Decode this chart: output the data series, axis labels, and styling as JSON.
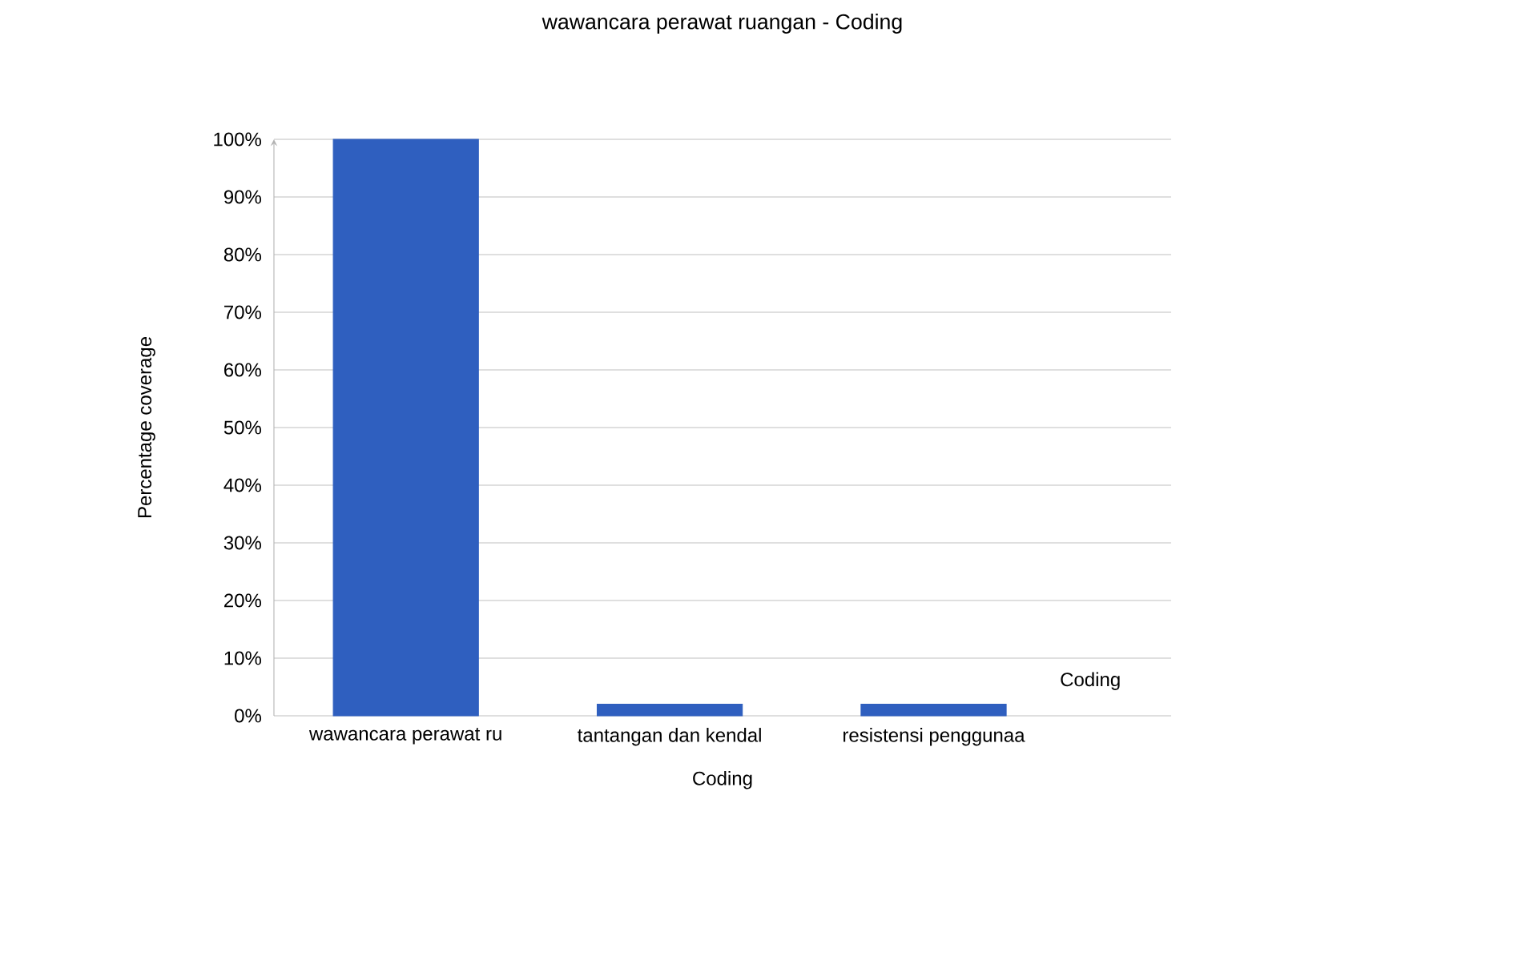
{
  "chart_data": {
    "type": "bar",
    "title": "wawancara perawat ruangan - Coding",
    "categories": [
      "wawancara perawat ru",
      "tantangan dan kendal",
      "resistensi penggunaa"
    ],
    "series": [
      {
        "name": "Coding",
        "color": "#2f5fbf",
        "values": [
          100,
          2,
          2
        ]
      }
    ],
    "xlabel": "Coding",
    "ylabel": "Percentage coverage",
    "ylim": [
      0,
      100
    ],
    "yticks": [
      {
        "value": 0,
        "label": "0%"
      },
      {
        "value": 10,
        "label": "10%"
      },
      {
        "value": 20,
        "label": "20%"
      },
      {
        "value": 30,
        "label": "30%"
      },
      {
        "value": 40,
        "label": "40%"
      },
      {
        "value": 50,
        "label": "50%"
      },
      {
        "value": 60,
        "label": "60%"
      },
      {
        "value": 70,
        "label": "70%"
      },
      {
        "value": 80,
        "label": "80%"
      },
      {
        "value": 90,
        "label": "90%"
      },
      {
        "value": 100,
        "label": "100%"
      }
    ],
    "grid": "y"
  }
}
